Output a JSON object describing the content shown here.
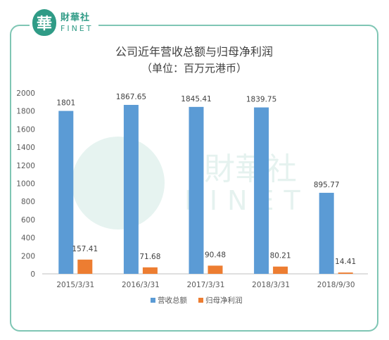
{
  "logo": {
    "glyph": "華",
    "name_cn": "財華社",
    "name_en": "FINET",
    "color": "#2f9b86"
  },
  "watermark": {
    "text_cn": "財華社",
    "text_en": "FINET"
  },
  "chart_data": {
    "type": "bar",
    "title": "公司近年营收总额与归母净利润",
    "subtitle": "（单位：百万元港币）",
    "categories": [
      "2015/3/31",
      "2016/3/31",
      "2017/3/31",
      "2018/3/31",
      "2018/9/30"
    ],
    "series": [
      {
        "name": "营收总额",
        "color": "#5b9bd5",
        "values": [
          1801,
          1867.65,
          1845.41,
          1839.75,
          895.77
        ],
        "labels": [
          "1801",
          "1867.65",
          "1845.41",
          "1839.75",
          "895.77"
        ]
      },
      {
        "name": "归母净利润",
        "color": "#ed7d31",
        "values": [
          157.41,
          71.68,
          90.48,
          80.21,
          14.41
        ],
        "labels": [
          "157.41",
          "71.68",
          "90.48",
          "80.21",
          "14.41"
        ]
      }
    ],
    "ylim": [
      0,
      2000
    ],
    "yticks": [
      0,
      200,
      400,
      600,
      800,
      1000,
      1200,
      1400,
      1600,
      1800,
      2000
    ],
    "grid": false,
    "legend": "bottom",
    "xlabel": "",
    "ylabel": ""
  }
}
